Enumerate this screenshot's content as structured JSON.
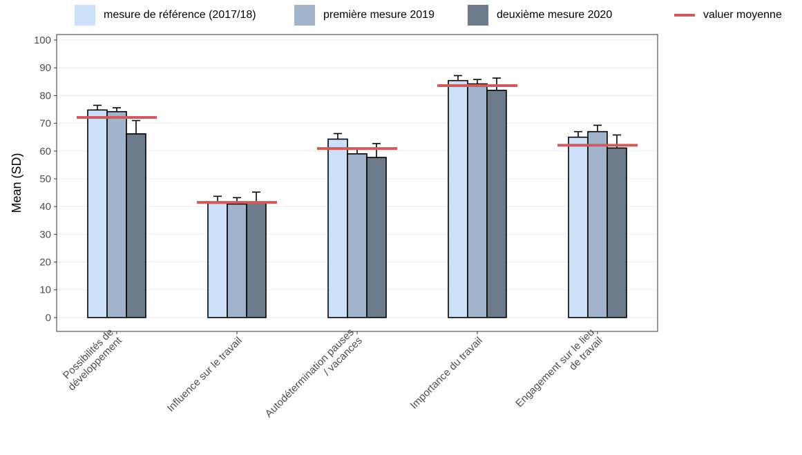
{
  "chart_data": {
    "type": "bar",
    "ylabel": "Mean (SD)",
    "xlabel": "",
    "ylim": [
      -5,
      102
    ],
    "yticks": [
      0,
      10,
      20,
      30,
      40,
      50,
      60,
      70,
      80,
      90,
      100
    ],
    "grid": "horizontal",
    "legend_position": "top",
    "categories": [
      [
        "Possibilités de",
        "développement"
      ],
      [
        "Influence sur le travail"
      ],
      [
        "Autodétermination pauses",
        "/ vacances"
      ],
      [
        "Importance du travail"
      ],
      [
        "Engagement sur le lieu",
        "de travail"
      ]
    ],
    "series": [
      {
        "name": "mesure de référence (2017/18)",
        "color": "#cce0fa",
        "values": [
          74.8,
          41.2,
          64.3,
          85.4,
          65.0
        ],
        "errors": [
          1.7,
          2.5,
          2.0,
          1.8,
          2.0
        ]
      },
      {
        "name": "première mesure 2019",
        "color": "#a2b4cc",
        "values": [
          74.2,
          40.9,
          59.0,
          84.2,
          67.0
        ],
        "errors": [
          1.4,
          2.3,
          1.9,
          1.6,
          2.3
        ]
      },
      {
        "name": "deuxième mesure 2020",
        "color": "#6d7a89",
        "values": [
          66.2,
          41.5,
          57.7,
          81.9,
          61.1
        ],
        "errors": [
          4.8,
          3.7,
          5.0,
          4.4,
          4.7
        ]
      }
    ],
    "mean_line": {
      "name": "valuer moyenne",
      "color": "#cd5c5c",
      "values": [
        72.1,
        41.5,
        60.9,
        83.6,
        62.1
      ]
    }
  }
}
